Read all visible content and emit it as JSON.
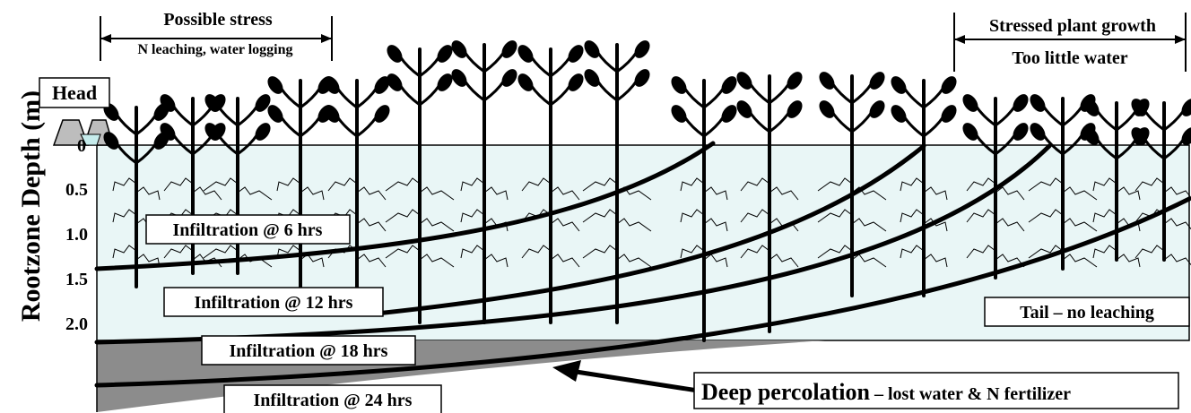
{
  "y_axis_label": "Rootzone Depth (m)",
  "depth_ticks": [
    "0",
    "0.5",
    "1.0",
    "1.5",
    "2.0"
  ],
  "head_label": "Head",
  "head_zone": {
    "title": "Possible stress",
    "subtitle": "N leaching, water logging"
  },
  "tail_zone": {
    "title": "Stressed plant growth",
    "subtitle": "Too little water"
  },
  "infiltration_fronts": [
    {
      "label": "Infiltration @ 6 hrs"
    },
    {
      "label": "Infiltration @ 12 hrs"
    },
    {
      "label": "Infiltration @ 18 hrs"
    },
    {
      "label": "Infiltration @ 24 hrs"
    }
  ],
  "tail_note": "Tail – no leaching",
  "deep_percolation": {
    "title": "Deep percolation",
    "subtitle": " – lost water & N fertilizer"
  },
  "colors": {
    "soil_wet": "#e9f6f6",
    "deep_percolation": "#8c8c8c",
    "head_water": "#c6ecec",
    "ink": "#000000"
  },
  "plants": {
    "count": 16,
    "tall_in_middle": true
  }
}
